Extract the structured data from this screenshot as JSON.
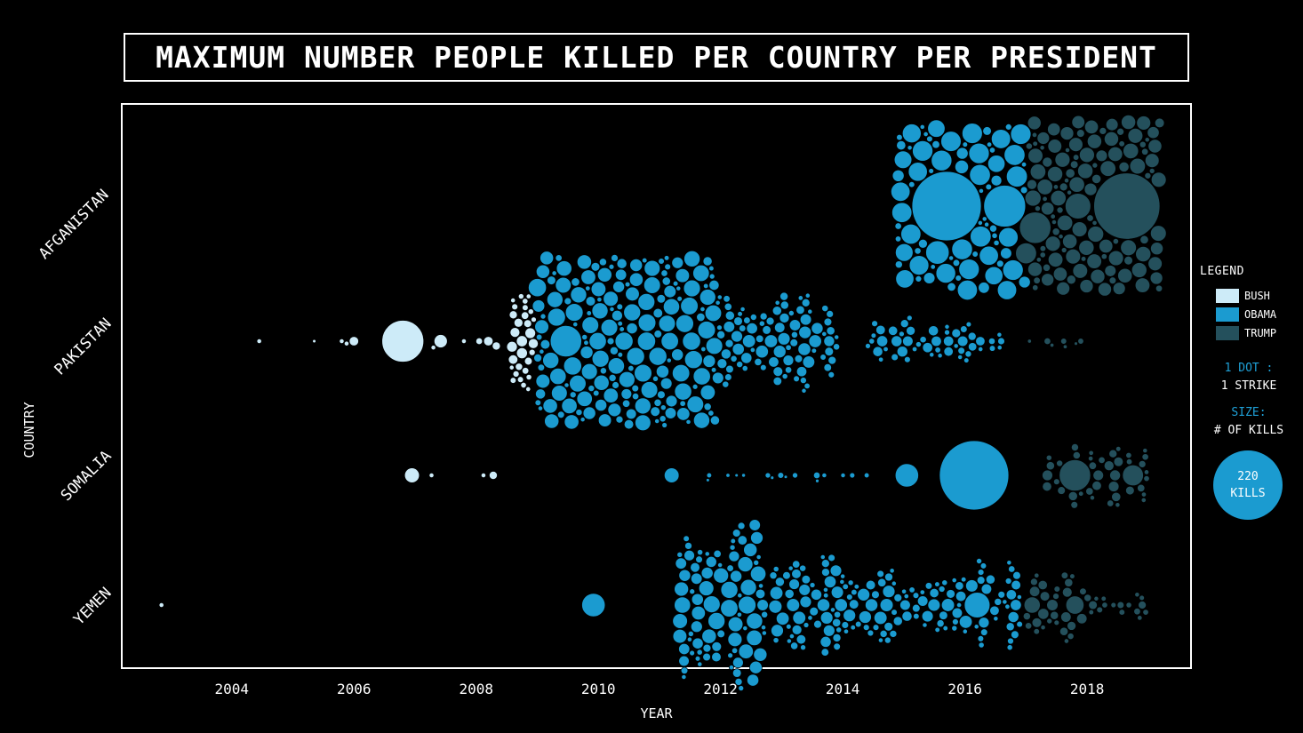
{
  "title": "MAXIMUM NUMBER PEOPLE KILLED PER COUNTRY PER PRESIDENT",
  "colors": {
    "bush": "#cdebf8",
    "obama": "#1b9bd0",
    "trump": "#24505c",
    "background": "#000000",
    "frame": "#ffffff"
  },
  "legend": {
    "title": "LEGEND",
    "items": [
      {
        "label": "BUSH",
        "color": "#cdebf8"
      },
      {
        "label": "OBAMA",
        "color": "#1b9bd0"
      },
      {
        "label": "TRUMP",
        "color": "#24505c"
      }
    ],
    "dot_note_1": "1 DOT :",
    "dot_note_2": "1 STRIKE",
    "size_note_1": "SIZE:",
    "size_note_2": "# OF KILLS",
    "size_circle_value": "220",
    "size_circle_unit": "KILLS"
  },
  "chart_data": {
    "type": "scatter",
    "subtype": "beeswarm",
    "title": "MAXIMUM NUMBER PEOPLE KILLED PER COUNTRY PER PRESIDENT",
    "xlabel": "YEAR",
    "ylabel": "COUNTRY",
    "xlim": [
      2002.2,
      2019.7
    ],
    "x_ticks": [
      2004,
      2006,
      2008,
      2010,
      2012,
      2014,
      2016,
      2018
    ],
    "categories": [
      "AFGANISTAN",
      "PAKISTAN",
      "SOMALIA",
      "YEMEN"
    ],
    "size_encoding": "kills",
    "size_reference": {
      "kills": 220
    },
    "series": [
      {
        "name": "BUSH",
        "points": [
          {
            "country": "PAKISTAN",
            "year": 2004.45,
            "kills": 1
          },
          {
            "country": "PAKISTAN",
            "year": 2005.35,
            "kills": 0.5
          },
          {
            "country": "PAKISTAN",
            "year": 2005.8,
            "kills": 1
          },
          {
            "country": "PAKISTAN",
            "year": 2005.88,
            "kills": 1
          },
          {
            "country": "PAKISTAN",
            "year": 2006.0,
            "kills": 4
          },
          {
            "country": "PAKISTAN",
            "year": 2006.8,
            "kills": 80
          },
          {
            "country": "PAKISTAN",
            "year": 2007.3,
            "kills": 1
          },
          {
            "country": "PAKISTAN",
            "year": 2007.42,
            "kills": 8
          },
          {
            "country": "PAKISTAN",
            "year": 2007.8,
            "kills": 1
          },
          {
            "country": "PAKISTAN",
            "year": 2008.05,
            "kills": 2
          },
          {
            "country": "PAKISTAN",
            "year": 2008.2,
            "kills": 4
          },
          {
            "country": "PAKISTAN",
            "year": 2008.33,
            "kills": 3
          },
          {
            "country": "SOMALIA",
            "year": 2006.95,
            "kills": 10
          },
          {
            "country": "SOMALIA",
            "year": 2007.27,
            "kills": 1
          },
          {
            "country": "SOMALIA",
            "year": 2008.12,
            "kills": 1
          },
          {
            "country": "SOMALIA",
            "year": 2008.28,
            "kills": 3
          },
          {
            "country": "YEMEN",
            "year": 2002.85,
            "kills": 1
          }
        ],
        "clusters": [
          {
            "country": "PAKISTAN",
            "x_range": [
              2008.55,
              2008.95
            ],
            "count": 30,
            "kills_range": [
              1,
              6
            ]
          }
        ]
      },
      {
        "name": "OBAMA",
        "points": [
          {
            "country": "AFGANISTAN",
            "year": 2015.7,
            "kills": 220
          },
          {
            "country": "AFGANISTAN",
            "year": 2016.65,
            "kills": 80
          },
          {
            "country": "AFGANISTAN",
            "year": 2015.55,
            "kills": 25
          },
          {
            "country": "AFGANISTAN",
            "year": 2016.85,
            "kills": 20
          },
          {
            "country": "PAKISTAN",
            "year": 2009.47,
            "kills": 45
          },
          {
            "country": "SOMALIA",
            "year": 2011.2,
            "kills": 10
          },
          {
            "country": "SOMALIA",
            "year": 2015.05,
            "kills": 25
          },
          {
            "country": "SOMALIA",
            "year": 2016.15,
            "kills": 220
          },
          {
            "country": "YEMEN",
            "year": 2009.92,
            "kills": 25
          },
          {
            "country": "YEMEN",
            "year": 2016.2,
            "kills": 30
          }
        ],
        "clusters": [
          {
            "country": "AFGANISTAN",
            "x_range": [
              2014.9,
              2017.0
            ],
            "count": 320,
            "kills_range": [
              1,
              20
            ]
          },
          {
            "country": "PAKISTAN",
            "x_range": [
              2009.0,
              2011.9
            ],
            "count": 300,
            "kills_range": [
              1,
              15
            ]
          },
          {
            "country": "PAKISTAN",
            "x_range": [
              2011.9,
              2013.9
            ],
            "count": 90,
            "kills_range": [
              1,
              8
            ]
          },
          {
            "country": "PAKISTAN",
            "x_range": [
              2014.4,
              2016.6
            ],
            "count": 50,
            "kills_range": [
              1,
              6
            ]
          },
          {
            "country": "SOMALIA",
            "x_range": [
              2011.3,
              2014.7
            ],
            "count": 16,
            "kills_range": [
              0.5,
              2
            ]
          },
          {
            "country": "YEMEN",
            "x_range": [
              2011.3,
              2012.7
            ],
            "count": 90,
            "kills_range": [
              1,
              15
            ]
          },
          {
            "country": "YEMEN",
            "x_range": [
              2012.7,
              2016.9
            ],
            "count": 160,
            "kills_range": [
              1,
              8
            ]
          }
        ]
      },
      {
        "name": "TRUMP",
        "points": [
          {
            "country": "AFGANISTAN",
            "year": 2018.65,
            "kills": 200
          },
          {
            "country": "AFGANISTAN",
            "year": 2017.15,
            "kills": 45
          },
          {
            "country": "AFGANISTAN",
            "year": 2017.85,
            "kills": 30
          },
          {
            "country": "AFGANISTAN",
            "year": 2017.0,
            "kills": 20
          },
          {
            "country": "PAKISTAN",
            "year": 2017.35,
            "kills": 2
          },
          {
            "country": "SOMALIA",
            "year": 2017.8,
            "kills": 45
          },
          {
            "country": "SOMALIA",
            "year": 2018.75,
            "kills": 20
          },
          {
            "country": "YEMEN",
            "year": 2017.1,
            "kills": 12
          },
          {
            "country": "YEMEN",
            "year": 2017.8,
            "kills": 15
          }
        ],
        "clusters": [
          {
            "country": "AFGANISTAN",
            "x_range": [
              2017.0,
              2019.2
            ],
            "count": 260,
            "kills_range": [
              1,
              12
            ]
          },
          {
            "country": "PAKISTAN",
            "x_range": [
              2017.0,
              2017.9
            ],
            "count": 6,
            "kills_range": [
              0.5,
              2
            ]
          },
          {
            "country": "SOMALIA",
            "x_range": [
              2017.3,
              2019.0
            ],
            "count": 40,
            "kills_range": [
              1,
              6
            ]
          },
          {
            "country": "YEMEN",
            "x_range": [
              2017.0,
              2019.0
            ],
            "count": 45,
            "kills_range": [
              1,
              6
            ]
          }
        ]
      }
    ],
    "legend_position": "right",
    "grid": false
  }
}
